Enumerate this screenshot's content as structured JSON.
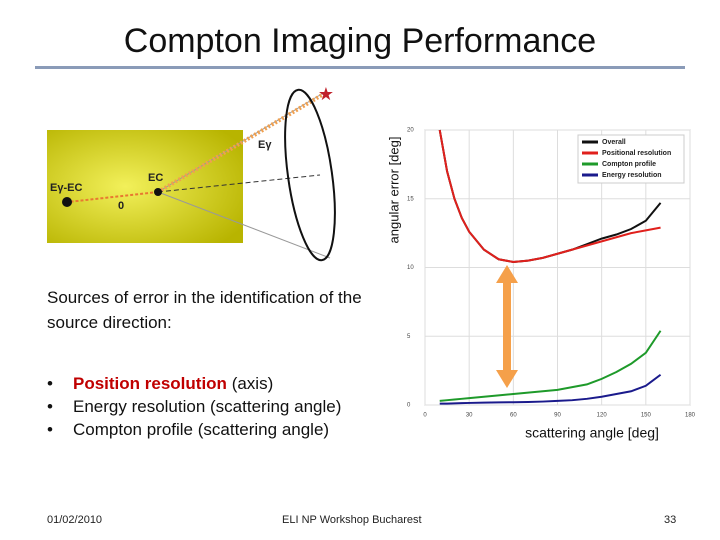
{
  "title": "Compton Imaging Performance",
  "diagram": {
    "labels": [
      "Eγ-EC",
      "EC",
      "0",
      "Eγ"
    ]
  },
  "intro": "Sources of error in the identification of the source direction:",
  "bullets": [
    {
      "emphasis": "Position resolution",
      "text": "(axis)"
    },
    {
      "text": "Energy resolution (scattering angle)"
    },
    {
      "text": "Compton profile (scattering angle)"
    }
  ],
  "footer": {
    "date": "01/02/2010",
    "event": "ELI NP Workshop Bucharest",
    "page": "33"
  },
  "chart_data": {
    "type": "line",
    "ylabel": "angular error [deg]",
    "xlabel": "scattering angle [deg]",
    "x": [
      10,
      15,
      20,
      25,
      30,
      40,
      50,
      60,
      70,
      80,
      90,
      100,
      110,
      120,
      130,
      140,
      150,
      160
    ],
    "series": [
      {
        "name": "Overall",
        "color": "#111111",
        "values": [
          20,
          17,
          15,
          13.6,
          12.6,
          11.3,
          10.6,
          10.4,
          10.5,
          10.7,
          11,
          11.3,
          11.7,
          12.1,
          12.4,
          12.8,
          13.4,
          14.7
        ]
      },
      {
        "name": "Positional resolution",
        "color": "#e0201c",
        "values": [
          20,
          17,
          15,
          13.6,
          12.6,
          11.3,
          10.6,
          10.4,
          10.5,
          10.7,
          11,
          11.3,
          11.6,
          11.9,
          12.2,
          12.5,
          12.7,
          12.9
        ]
      },
      {
        "name": "Compton profile",
        "color": "#1e9a2a",
        "values": [
          0.3,
          0.35,
          0.4,
          0.45,
          0.5,
          0.6,
          0.7,
          0.8,
          0.9,
          1.0,
          1.1,
          1.3,
          1.5,
          1.9,
          2.4,
          3.0,
          3.8,
          5.4
        ]
      },
      {
        "name": "Energy resolution",
        "color": "#1a1a8c",
        "values": [
          0.1,
          0.1,
          0.12,
          0.14,
          0.15,
          0.17,
          0.19,
          0.2,
          0.22,
          0.25,
          0.3,
          0.35,
          0.45,
          0.6,
          0.8,
          1.0,
          1.4,
          2.2
        ]
      }
    ],
    "xlim": [
      0,
      180
    ],
    "xticks": [
      0,
      30,
      60,
      90,
      120,
      150,
      180
    ],
    "ylim": [
      0,
      20
    ],
    "yticks": [
      0,
      5,
      10,
      15,
      20
    ],
    "grid": true,
    "legend": "top-right"
  }
}
